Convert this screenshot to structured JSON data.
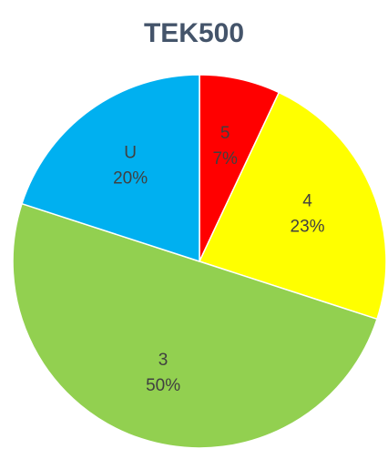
{
  "chart_data": {
    "type": "pie",
    "title": "TEK500",
    "categories": [
      "5",
      "4",
      "3",
      "U"
    ],
    "values": [
      7,
      23,
      50,
      20
    ],
    "value_labels": [
      "7%",
      "23%",
      "50%",
      "20%"
    ],
    "colors": [
      "#ff0000",
      "#ffff00",
      "#92d050",
      "#00b0f0"
    ]
  }
}
